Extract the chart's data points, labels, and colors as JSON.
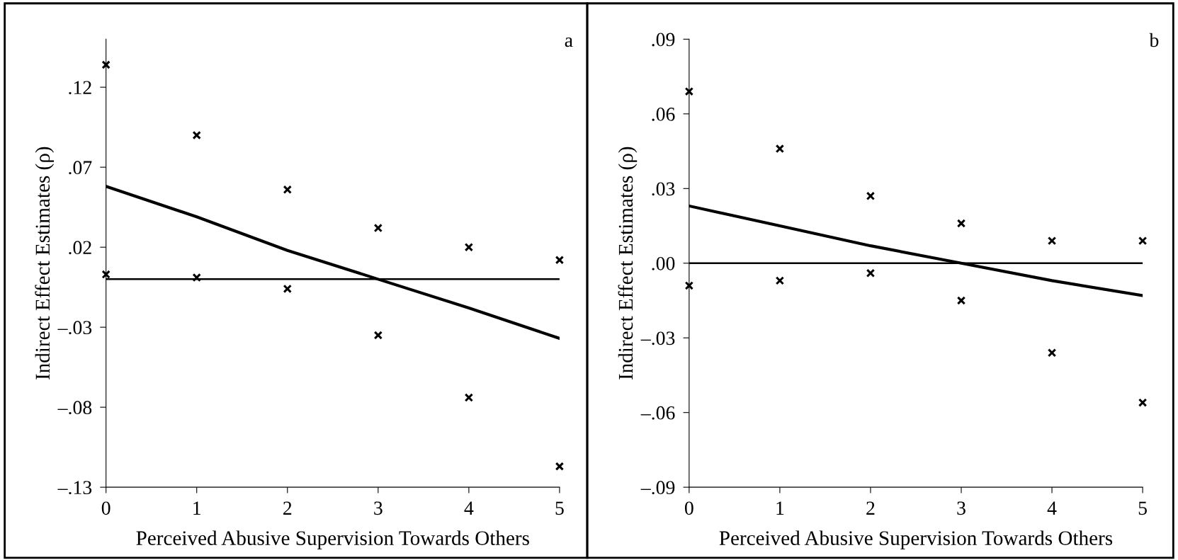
{
  "chart_data": [
    {
      "type": "scatter",
      "xlabel": "Perceived Abusive Supervision Towards Others",
      "ylabel": "Indirect Effect Estimates (ρ)",
      "annotations": [
        "a"
      ],
      "marker": "cross",
      "grid": false,
      "legend": false,
      "xlim": [
        0,
        5
      ],
      "xticks": [
        0,
        1,
        2,
        3,
        4,
        5
      ],
      "ylim": [
        -0.13,
        0.15
      ],
      "yticks": [
        {
          "value": -0.13,
          "label": "–.13"
        },
        {
          "value": -0.08,
          "label": "–.08"
        },
        {
          "value": -0.03,
          "label": "–.03"
        },
        {
          "value": 0.02,
          "label": ".02"
        },
        {
          "value": 0.07,
          "label": ".07"
        },
        {
          "value": 0.12,
          "label": ".12"
        }
      ],
      "ref_lines": [
        {
          "axis": "y",
          "value": 0,
          "color": "#000000"
        }
      ],
      "series": [
        {
          "color": "#000000",
          "x": [
            0,
            1,
            2,
            3,
            4,
            5
          ],
          "values": [
            0.134,
            0.09,
            0.056,
            0.032,
            0.02,
            0.012
          ]
        },
        {
          "color": "#000000",
          "x": [
            0,
            1,
            2,
            3,
            4,
            5
          ],
          "values": [
            0.003,
            0.001,
            -0.006,
            -0.035,
            -0.074,
            -0.117
          ]
        },
        {
          "type": "line",
          "color": "#000000",
          "marker": "none",
          "x": [
            0,
            1,
            2,
            3,
            4,
            5
          ],
          "values": [
            0.058,
            0.039,
            0.018,
            0.0,
            -0.018,
            -0.037
          ]
        }
      ]
    },
    {
      "type": "scatter",
      "xlabel": "Perceived Abusive Supervision Towards Others",
      "ylabel": "Indirect Effect Estimates (ρ)",
      "annotations": [
        "b"
      ],
      "marker": "cross",
      "grid": false,
      "legend": false,
      "xlim": [
        0,
        5
      ],
      "xticks": [
        0,
        1,
        2,
        3,
        4,
        5
      ],
      "ylim": [
        -0.09,
        0.09
      ],
      "yticks": [
        {
          "value": -0.09,
          "label": "–.09"
        },
        {
          "value": -0.06,
          "label": "–.06"
        },
        {
          "value": -0.03,
          "label": "–.03"
        },
        {
          "value": 0,
          "label": ".00"
        },
        {
          "value": 0.03,
          "label": ".03"
        },
        {
          "value": 0.06,
          "label": ".06"
        },
        {
          "value": 0.09,
          "label": ".09"
        }
      ],
      "ref_lines": [
        {
          "axis": "y",
          "value": 0,
          "color": "#000000"
        }
      ],
      "series": [
        {
          "color": "#000000",
          "x": [
            0,
            1,
            2,
            3,
            4,
            5
          ],
          "values": [
            0.069,
            0.046,
            0.027,
            0.016,
            0.009,
            0.009
          ]
        },
        {
          "color": "#000000",
          "x": [
            0,
            1,
            2,
            3,
            4,
            5
          ],
          "values": [
            -0.009,
            -0.007,
            -0.004,
            -0.015,
            -0.036,
            -0.056
          ]
        },
        {
          "type": "line",
          "color": "#000000",
          "marker": "none",
          "x": [
            0,
            1,
            2,
            3,
            4,
            5
          ],
          "values": [
            0.023,
            0.015,
            0.007,
            0.0,
            -0.007,
            -0.013
          ]
        }
      ]
    }
  ]
}
